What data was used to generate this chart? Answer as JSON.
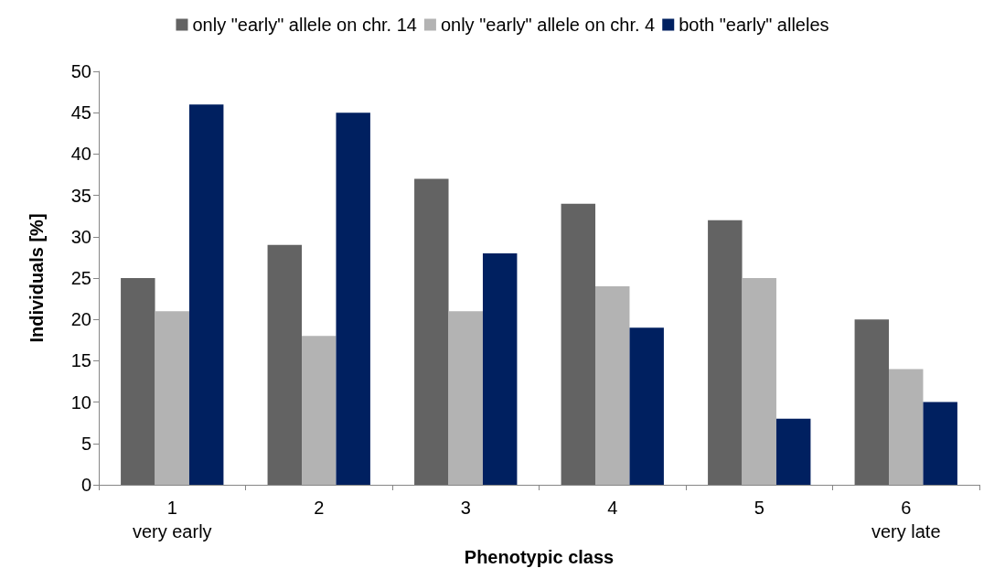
{
  "chart_data": {
    "type": "bar",
    "xlabel": "Phenotypic class",
    "ylabel": "Individuals [%]",
    "categories": [
      "1\nvery early",
      "2",
      "3",
      "4",
      "5",
      "6\nvery late"
    ],
    "series": [
      {
        "name": "only \"early\" allele on chr. 14",
        "color": "#636363",
        "values": [
          25,
          29,
          37,
          34,
          32,
          20
        ]
      },
      {
        "name": "only \"early\" allele on chr. 4",
        "color": "#b3b3b3",
        "values": [
          21,
          18,
          21,
          24,
          25,
          14
        ]
      },
      {
        "name": "both \"early\" alleles",
        "color": "#002060",
        "values": [
          46,
          45,
          28,
          19,
          8,
          10
        ]
      }
    ],
    "ylim": [
      0,
      50
    ],
    "yticks": [
      0,
      5,
      10,
      15,
      20,
      25,
      30,
      35,
      40,
      45,
      50
    ],
    "grid": false,
    "legend": "top"
  }
}
